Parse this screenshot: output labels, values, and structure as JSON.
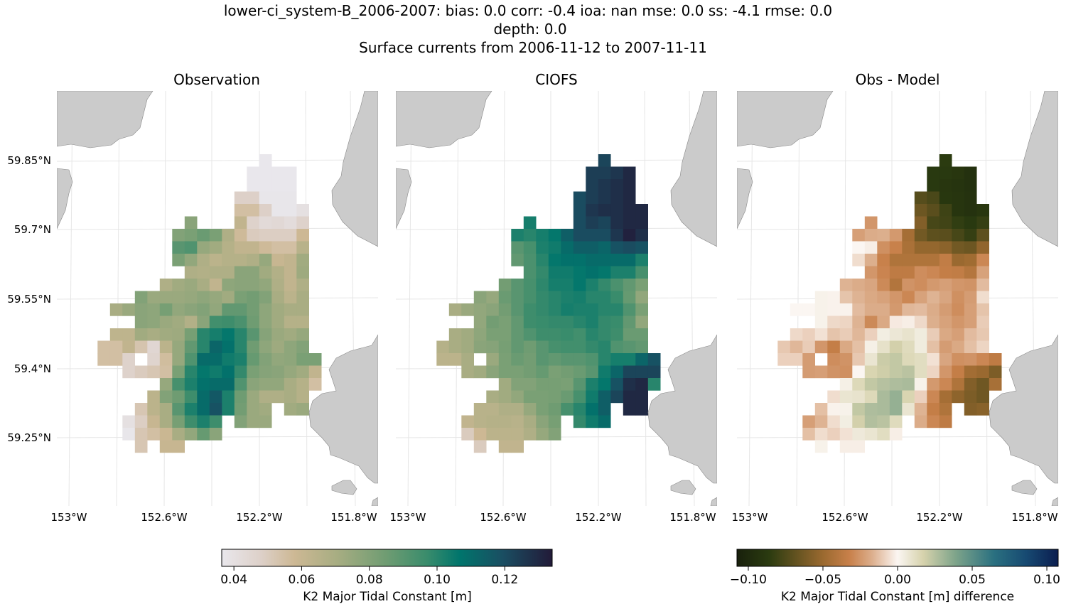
{
  "header": {
    "line1": "lower-ci_system-B_2006-2007: bias: 0.0  corr: -0.4  ioa: nan  mse: 0.0  ss: -4.1  rmse: 0.0",
    "line2": "depth: 0.0",
    "line3": "Surface currents from 2006-11-12 to 2007-11-11"
  },
  "panels": [
    {
      "title": "Observation"
    },
    {
      "title": "CIOFS"
    },
    {
      "title": "Obs - Model"
    }
  ],
  "axes": {
    "lon_labels": [
      "153°W",
      "152.6°W",
      "152.2°W",
      "151.8°W"
    ],
    "lat_labels": [
      "59.85°N",
      "59.7°N",
      "59.55°N",
      "59.4°N",
      "59.25°N"
    ]
  },
  "chart_data": {
    "type": "heatmap",
    "grid_shape": [
      24,
      18
    ],
    "observation": [
      [
        null,
        null,
        null,
        null,
        null,
        null,
        null,
        null,
        null,
        null,
        null,
        null,
        null,
        0.036,
        null,
        null,
        null,
        null
      ],
      [
        null,
        null,
        null,
        null,
        null,
        null,
        null,
        null,
        null,
        null,
        null,
        null,
        0.036,
        0.036,
        0.036,
        0.036,
        null,
        null
      ],
      [
        null,
        null,
        null,
        null,
        null,
        null,
        null,
        null,
        null,
        null,
        null,
        null,
        0.036,
        0.036,
        0.036,
        0.036,
        null,
        null
      ],
      [
        null,
        null,
        null,
        null,
        null,
        null,
        null,
        null,
        null,
        null,
        null,
        0.048,
        0.048,
        0.037,
        0.037,
        0.037,
        null,
        null
      ],
      [
        null,
        null,
        null,
        null,
        null,
        null,
        null,
        null,
        null,
        null,
        null,
        0.055,
        0.055,
        0.048,
        0.037,
        0.037,
        0.04,
        null
      ],
      [
        null,
        null,
        null,
        null,
        null,
        null,
        null,
        0.078,
        null,
        null,
        null,
        0.062,
        0.047,
        0.043,
        0.044,
        0.042,
        0.047,
        null
      ],
      [
        null,
        null,
        null,
        null,
        null,
        null,
        0.08,
        0.082,
        0.086,
        0.082,
        0.068,
        0.057,
        0.05,
        0.049,
        0.049,
        0.049,
        0.058,
        null
      ],
      [
        null,
        null,
        null,
        null,
        null,
        null,
        0.09,
        0.092,
        0.075,
        0.072,
        0.066,
        0.062,
        0.062,
        0.057,
        0.055,
        0.055,
        0.065,
        null
      ],
      [
        null,
        null,
        null,
        null,
        null,
        null,
        0.082,
        0.076,
        0.068,
        0.064,
        0.066,
        0.066,
        0.068,
        0.075,
        0.06,
        0.062,
        0.072,
        null
      ],
      [
        null,
        null,
        null,
        null,
        null,
        null,
        null,
        0.068,
        0.067,
        0.068,
        0.068,
        0.078,
        0.078,
        0.072,
        0.067,
        0.062,
        0.073,
        null
      ],
      [
        null,
        null,
        null,
        null,
        null,
        0.068,
        0.072,
        0.074,
        0.07,
        0.062,
        0.077,
        0.078,
        0.078,
        0.076,
        0.068,
        0.062,
        0.068,
        null
      ],
      [
        null,
        null,
        null,
        0.08,
        0.074,
        0.074,
        0.074,
        0.075,
        0.077,
        0.075,
        0.072,
        0.082,
        0.084,
        0.08,
        0.07,
        0.064,
        0.07,
        null
      ],
      [
        null,
        0.07,
        0.074,
        0.078,
        0.077,
        0.083,
        0.076,
        0.078,
        0.08,
        0.076,
        0.088,
        0.088,
        0.084,
        0.077,
        0.072,
        0.07,
        0.07,
        null
      ],
      [
        null,
        null,
        null,
        0.078,
        0.077,
        0.074,
        0.072,
        0.067,
        0.078,
        0.095,
        0.096,
        0.093,
        0.085,
        0.077,
        0.072,
        0.066,
        0.066,
        null
      ],
      [
        null,
        0.063,
        0.063,
        0.072,
        0.07,
        0.072,
        0.073,
        0.083,
        0.1,
        0.103,
        0.106,
        0.1,
        0.09,
        0.079,
        0.074,
        0.072,
        0.075,
        null
      ],
      [
        0.055,
        0.055,
        0.062,
        0.053,
        0.045,
        0.064,
        0.075,
        0.088,
        0.1,
        0.112,
        0.108,
        0.1,
        0.085,
        0.077,
        0.073,
        0.077,
        0.08,
        null
      ],
      [
        0.055,
        0.055,
        0.047,
        null,
        0.046,
        0.056,
        0.075,
        0.092,
        0.11,
        0.11,
        0.104,
        0.102,
        0.087,
        0.08,
        0.076,
        0.077,
        0.082,
        0.082
      ],
      [
        null,
        null,
        0.047,
        0.05,
        0.052,
        0.055,
        0.082,
        0.1,
        0.106,
        0.104,
        0.108,
        0.098,
        0.082,
        0.079,
        0.078,
        0.075,
        0.072,
        0.062
      ],
      [
        null,
        null,
        null,
        null,
        null,
        0.075,
        0.094,
        0.102,
        0.108,
        0.11,
        0.11,
        0.092,
        0.078,
        0.076,
        0.076,
        0.07,
        0.066,
        0.055
      ],
      [
        null,
        null,
        null,
        null,
        0.064,
        0.08,
        0.085,
        0.096,
        0.11,
        0.116,
        0.102,
        0.085,
        0.074,
        0.068,
        0.068,
        0.07,
        0.066,
        null
      ],
      [
        null,
        null,
        null,
        0.052,
        0.064,
        0.07,
        0.09,
        0.102,
        0.11,
        0.118,
        0.102,
        0.084,
        0.074,
        0.072,
        null,
        0.072,
        0.074,
        null
      ],
      [
        null,
        null,
        0.04,
        0.049,
        0.06,
        0.07,
        0.083,
        0.096,
        0.102,
        0.096,
        null,
        0.08,
        0.074,
        0.074,
        null,
        null,
        null,
        null
      ],
      [
        null,
        null,
        0.037,
        0.052,
        0.055,
        0.059,
        0.07,
        0.076,
        0.087,
        0.078,
        null,
        null,
        null,
        null,
        null,
        null,
        null,
        null
      ],
      [
        null,
        null,
        null,
        0.052,
        null,
        0.06,
        0.06,
        null,
        null,
        null,
        null,
        null,
        null,
        null,
        null,
        null,
        null,
        null
      ]
    ],
    "model": [
      [
        null,
        null,
        null,
        null,
        null,
        null,
        null,
        null,
        null,
        null,
        null,
        null,
        null,
        0.122,
        null,
        null,
        null,
        null
      ],
      [
        null,
        null,
        null,
        null,
        null,
        null,
        null,
        null,
        null,
        null,
        null,
        null,
        0.124,
        0.124,
        0.126,
        0.13,
        null,
        null
      ],
      [
        null,
        null,
        null,
        null,
        null,
        null,
        null,
        null,
        null,
        null,
        null,
        null,
        0.124,
        0.126,
        0.128,
        0.13,
        null,
        null
      ],
      [
        null,
        null,
        null,
        null,
        null,
        null,
        null,
        null,
        null,
        null,
        null,
        0.12,
        0.124,
        0.126,
        0.128,
        0.13,
        null,
        null
      ],
      [
        null,
        null,
        null,
        null,
        null,
        null,
        null,
        null,
        null,
        null,
        null,
        0.12,
        0.126,
        0.128,
        0.128,
        0.13,
        0.13,
        null
      ],
      [
        null,
        null,
        null,
        null,
        null,
        null,
        null,
        0.103,
        null,
        null,
        null,
        0.12,
        0.124,
        0.122,
        0.128,
        0.13,
        0.13,
        null
      ],
      [
        null,
        null,
        null,
        null,
        null,
        null,
        0.102,
        0.1,
        0.103,
        0.106,
        0.114,
        0.12,
        0.12,
        0.12,
        0.126,
        0.132,
        0.128,
        null
      ],
      [
        null,
        null,
        null,
        null,
        null,
        null,
        0.09,
        0.094,
        0.102,
        0.104,
        0.11,
        0.114,
        0.114,
        0.112,
        0.118,
        0.12,
        0.118,
        null
      ],
      [
        null,
        null,
        null,
        null,
        null,
        null,
        0.088,
        0.093,
        0.1,
        0.106,
        0.108,
        0.108,
        0.11,
        0.11,
        0.11,
        0.11,
        0.102,
        null
      ],
      [
        null,
        null,
        null,
        null,
        null,
        null,
        null,
        0.093,
        0.098,
        0.104,
        0.104,
        0.106,
        0.108,
        0.106,
        0.102,
        0.102,
        0.094,
        null
      ],
      [
        null,
        null,
        null,
        null,
        null,
        0.084,
        0.09,
        0.094,
        0.099,
        0.103,
        0.103,
        0.106,
        0.102,
        0.098,
        0.093,
        0.088,
        0.082,
        null
      ],
      [
        null,
        null,
        null,
        0.078,
        0.075,
        0.086,
        0.09,
        0.094,
        0.098,
        0.1,
        0.102,
        0.103,
        0.1,
        0.1,
        0.097,
        0.087,
        0.076,
        null
      ],
      [
        null,
        0.07,
        0.074,
        0.076,
        0.078,
        0.084,
        0.09,
        0.096,
        0.098,
        0.1,
        0.103,
        0.102,
        0.102,
        0.1,
        0.1,
        0.092,
        0.082,
        null
      ],
      [
        null,
        null,
        null,
        0.076,
        0.084,
        0.082,
        0.088,
        0.096,
        0.097,
        0.098,
        0.098,
        0.1,
        0.102,
        0.098,
        0.097,
        0.088,
        0.076,
        null
      ],
      [
        null,
        0.07,
        0.072,
        0.077,
        0.082,
        0.082,
        0.088,
        0.092,
        0.096,
        0.096,
        0.097,
        0.095,
        0.1,
        0.098,
        0.096,
        0.086,
        0.086,
        null
      ],
      [
        0.066,
        0.07,
        0.072,
        0.078,
        0.079,
        0.083,
        0.088,
        0.085,
        0.09,
        0.094,
        0.095,
        0.095,
        0.098,
        0.1,
        0.092,
        0.09,
        0.088,
        null
      ],
      [
        0.064,
        0.064,
        0.07,
        null,
        0.074,
        0.082,
        0.086,
        0.084,
        0.09,
        0.088,
        0.09,
        0.09,
        0.092,
        0.1,
        0.103,
        0.103,
        0.112,
        0.118
      ],
      [
        null,
        null,
        0.07,
        0.072,
        0.078,
        0.082,
        0.082,
        0.084,
        0.087,
        0.082,
        0.084,
        0.086,
        0.09,
        0.104,
        0.112,
        0.122,
        0.122,
        0.122
      ],
      [
        null,
        null,
        null,
        null,
        null,
        0.072,
        0.08,
        0.08,
        0.083,
        0.083,
        0.082,
        0.09,
        0.102,
        0.106,
        0.118,
        0.128,
        0.13,
        0.1
      ],
      [
        null,
        null,
        null,
        null,
        0.07,
        0.072,
        0.076,
        0.082,
        0.082,
        0.083,
        0.086,
        0.094,
        0.104,
        0.114,
        0.122,
        0.13,
        0.13,
        null
      ],
      [
        null,
        null,
        null,
        0.065,
        0.065,
        0.068,
        0.068,
        0.075,
        0.082,
        0.085,
        0.094,
        0.1,
        0.108,
        0.114,
        null,
        0.13,
        0.13,
        null
      ],
      [
        null,
        null,
        0.062,
        0.065,
        0.066,
        0.066,
        0.065,
        0.07,
        0.078,
        0.083,
        null,
        0.098,
        0.104,
        0.11,
        null,
        null,
        null,
        null
      ],
      [
        null,
        null,
        0.05,
        0.058,
        0.064,
        0.064,
        0.064,
        0.068,
        0.075,
        0.08,
        null,
        null,
        null,
        null,
        null,
        null,
        null,
        null
      ],
      [
        null,
        null,
        null,
        0.05,
        null,
        0.062,
        0.062,
        null,
        null,
        null,
        null,
        null,
        null,
        null,
        null,
        null,
        null,
        null
      ]
    ],
    "difference_definition": "Obs - Model",
    "colorbars": [
      {
        "label": "K2 Major Tidal Constant [m]",
        "range": [
          0.0364,
          0.134
        ],
        "ticks": [
          0.04,
          0.06,
          0.08,
          0.1,
          0.12
        ],
        "tick_labels": [
          "0.04",
          "0.06",
          "0.08",
          "0.10",
          "0.12"
        ],
        "colormap": [
          "#e9e7ec",
          "#ddd0c8",
          "#cdb894",
          "#a7ad82",
          "#6e9c72",
          "#3a8c6c",
          "#00756c",
          "#1a4e62",
          "#221a38"
        ],
        "colormap_positions": [
          0,
          0.12,
          0.22,
          0.35,
          0.5,
          0.62,
          0.72,
          0.85,
          1
        ]
      },
      {
        "label": "K2 Major Tidal Constant [m] difference",
        "range": [
          -0.1076,
          0.1076
        ],
        "ticks": [
          -0.1,
          -0.05,
          0.0,
          0.05,
          0.1
        ],
        "tick_labels": [
          "−0.10",
          "−0.05",
          "0.00",
          "0.05",
          "0.10"
        ],
        "colormap": [
          "#18200c",
          "#2b3b10",
          "#9c6a30",
          "#c8804a",
          "#dcae8c",
          "#fbf6f2",
          "#d6d2ac",
          "#7ea48a",
          "#2a7080",
          "#174a72",
          "#0b1d4f"
        ],
        "colormap_positions": [
          0,
          0.1,
          0.27,
          0.35,
          0.42,
          0.5,
          0.58,
          0.68,
          0.8,
          0.9,
          1
        ]
      }
    ],
    "land_color": "#cbcbcb"
  }
}
